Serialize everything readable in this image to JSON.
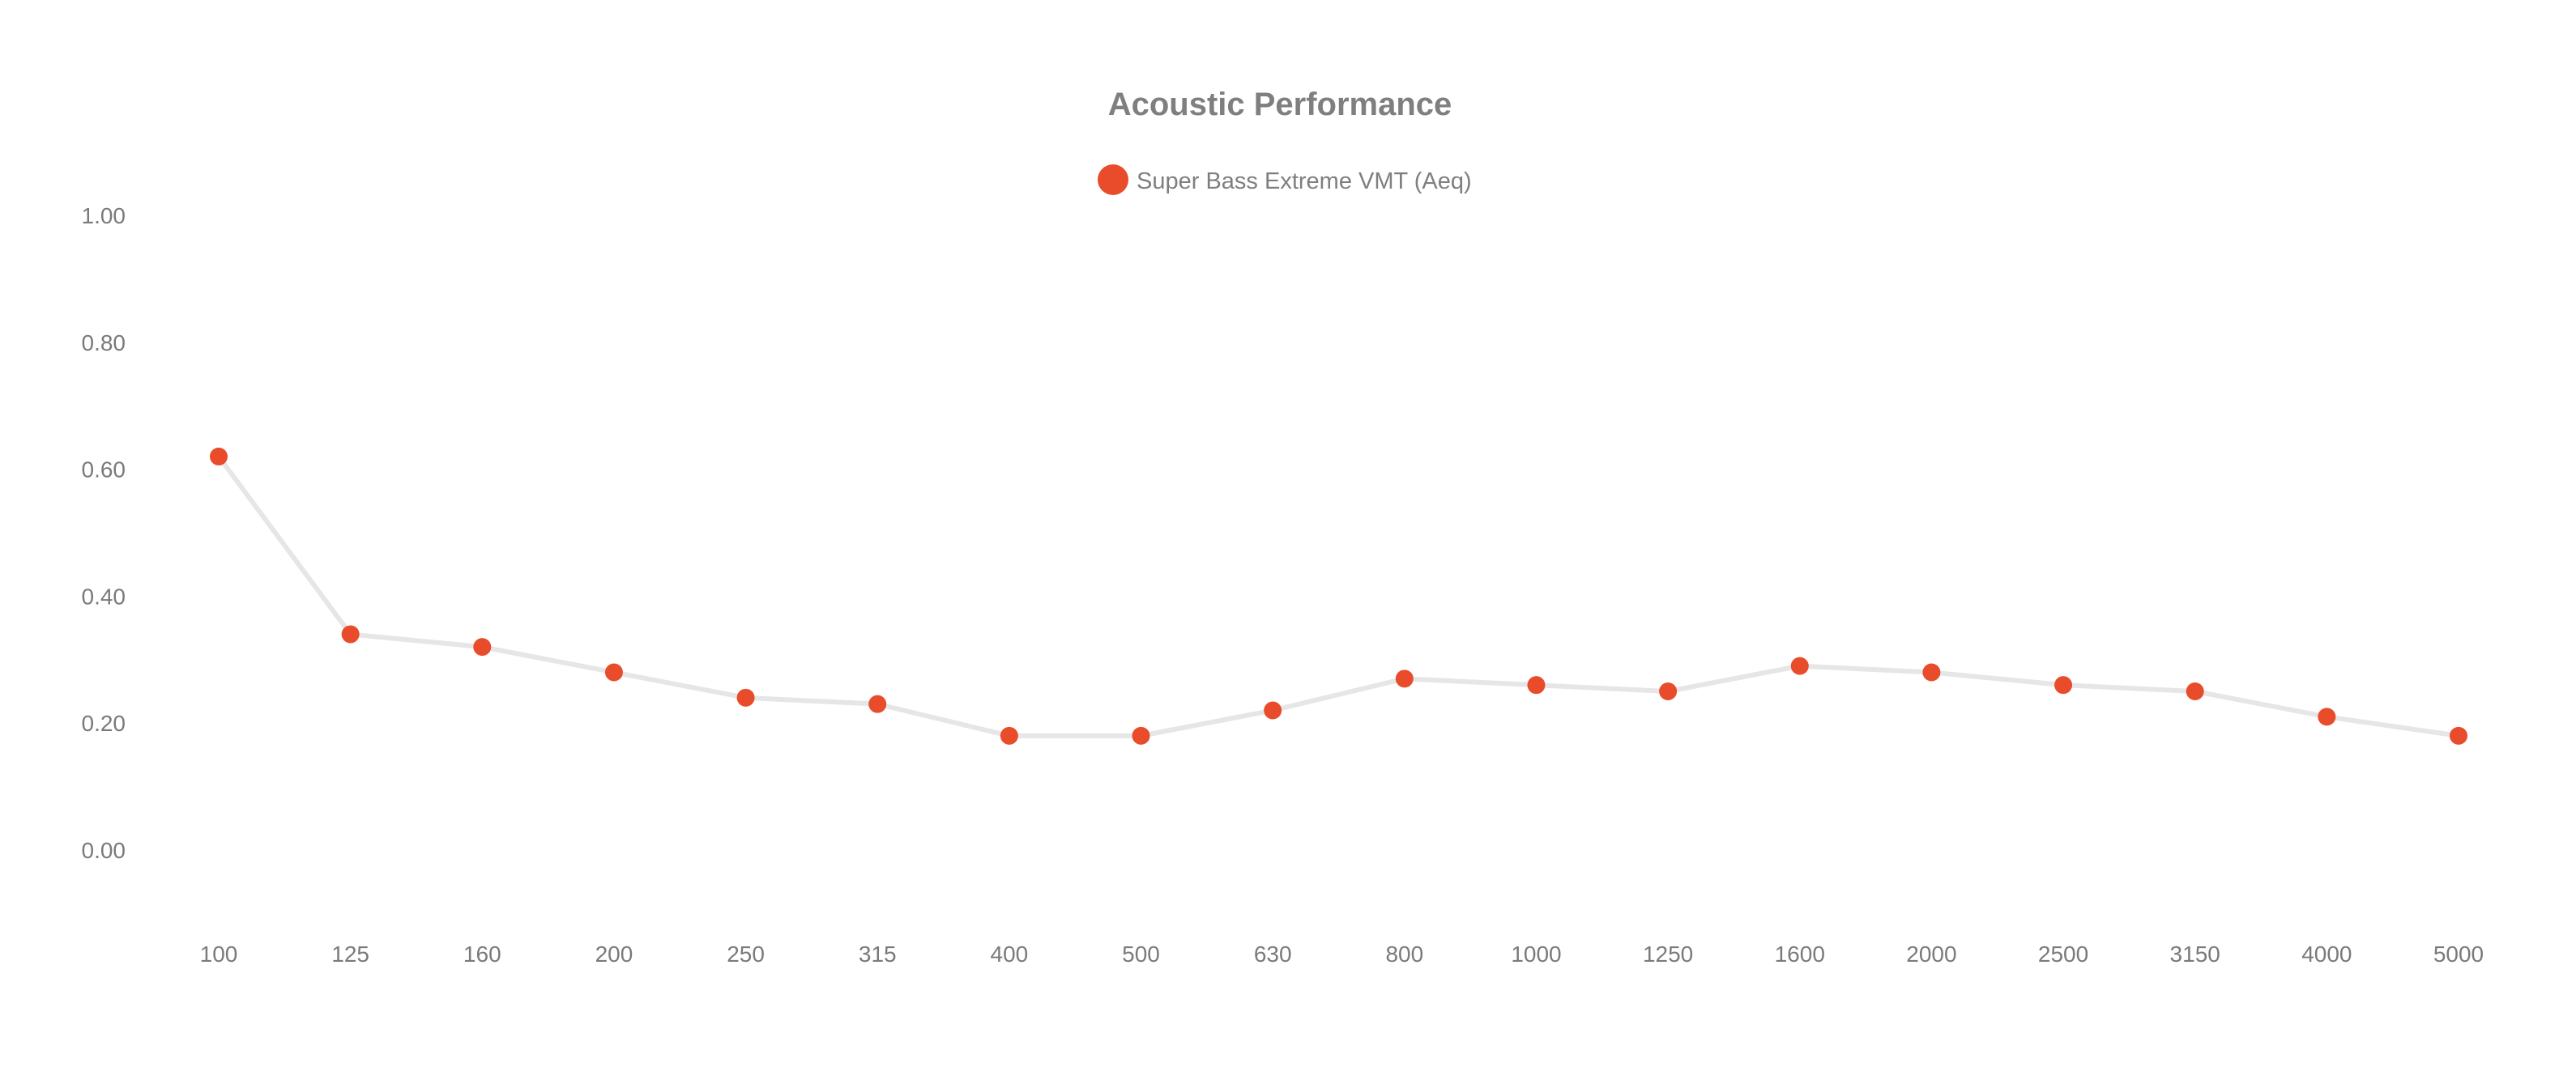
{
  "chart_data": {
    "type": "line",
    "title": "Acoustic Performance",
    "xlabel": "",
    "ylabel": "",
    "categories": [
      "100",
      "125",
      "160",
      "200",
      "250",
      "315",
      "400",
      "500",
      "630",
      "800",
      "1000",
      "1250",
      "1600",
      "2000",
      "2500",
      "3150",
      "4000",
      "5000"
    ],
    "series": [
      {
        "name": "Super Bass Extreme VMT (Aeq)",
        "values": [
          0.62,
          0.34,
          0.32,
          0.28,
          0.24,
          0.23,
          0.18,
          0.18,
          0.22,
          0.27,
          0.26,
          0.25,
          0.29,
          0.28,
          0.26,
          0.25,
          0.21,
          0.18
        ],
        "marker_color": "#e84c2b",
        "line_color": "#e6e6e6"
      }
    ],
    "yticks": [
      "1.00",
      "0.80",
      "0.60",
      "0.40",
      "0.20",
      "0.00"
    ],
    "ylim": [
      0,
      1
    ],
    "grid": false,
    "legend_position": "top-center"
  }
}
